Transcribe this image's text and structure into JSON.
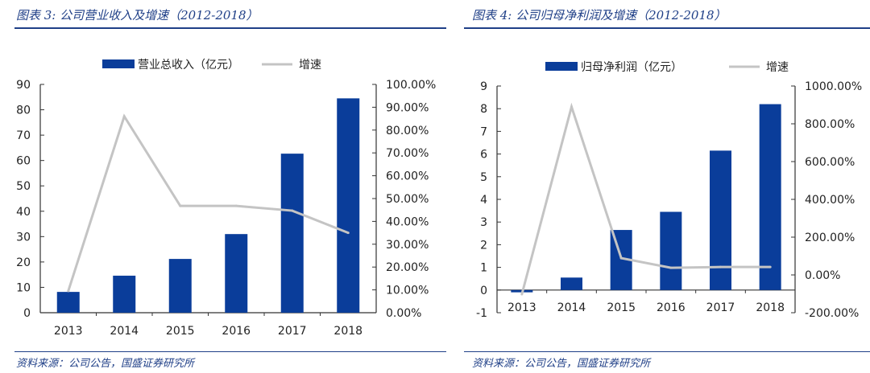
{
  "chart_data": [
    {
      "type": "bar",
      "title": "图表 3: 公司营业收入及增速（2012-2018）",
      "categories": [
        "2013",
        "2014",
        "2015",
        "2016",
        "2017",
        "2018"
      ],
      "series": [
        {
          "name": "营业总收入（亿元）",
          "kind": "bar",
          "axis": "left",
          "values": [
            8.2,
            14.6,
            21.2,
            31.0,
            62.7,
            84.5
          ]
        },
        {
          "name": "增速",
          "kind": "line",
          "axis": "right",
          "values": [
            9.5,
            86.0,
            46.8,
            46.8,
            44.7,
            35.0
          ]
        }
      ],
      "y_left": {
        "range": [
          0,
          90
        ],
        "ticks": [
          "0",
          "10",
          "20",
          "30",
          "40",
          "50",
          "60",
          "70",
          "80",
          "90"
        ]
      },
      "y_right": {
        "range": [
          0,
          100
        ],
        "ticks": [
          "0.00%",
          "10.00%",
          "20.00%",
          "30.00%",
          "40.00%",
          "50.00%",
          "60.00%",
          "70.00%",
          "80.00%",
          "90.00%",
          "100.00%"
        ]
      },
      "legend": "top",
      "grid": false,
      "source": "资料来源：公司公告，国盛证券研究所"
    },
    {
      "type": "bar",
      "title": "图表 4: 公司归母净利润及增速（2012-2018）",
      "categories": [
        "2013",
        "2014",
        "2015",
        "2016",
        "2017",
        "2018"
      ],
      "series": [
        {
          "name": "归母净利润（亿元）",
          "kind": "bar",
          "axis": "left",
          "values": [
            -0.1,
            0.55,
            2.65,
            3.45,
            6.15,
            8.2
          ]
        },
        {
          "name": "增速",
          "kind": "line",
          "axis": "right",
          "values": [
            -102,
            890,
            89,
            38,
            42,
            42
          ]
        }
      ],
      "y_left": {
        "range": [
          -1,
          9
        ],
        "ticks": [
          "-1",
          "0",
          "1",
          "2",
          "3",
          "4",
          "5",
          "6",
          "7",
          "8",
          "9"
        ]
      },
      "y_right": {
        "range": [
          -200,
          1000
        ],
        "ticks": [
          "-200.00%",
          "0.00%",
          "200.00%",
          "400.00%",
          "600.00%",
          "800.00%",
          "1000.00%"
        ]
      },
      "legend": "top",
      "grid": false,
      "source": "资料来源：公司公告，国盛证券研究所"
    }
  ],
  "colors": {
    "bar": "#0a3d9a",
    "line": "#c4c4c4",
    "accent": "#1f3f87"
  }
}
